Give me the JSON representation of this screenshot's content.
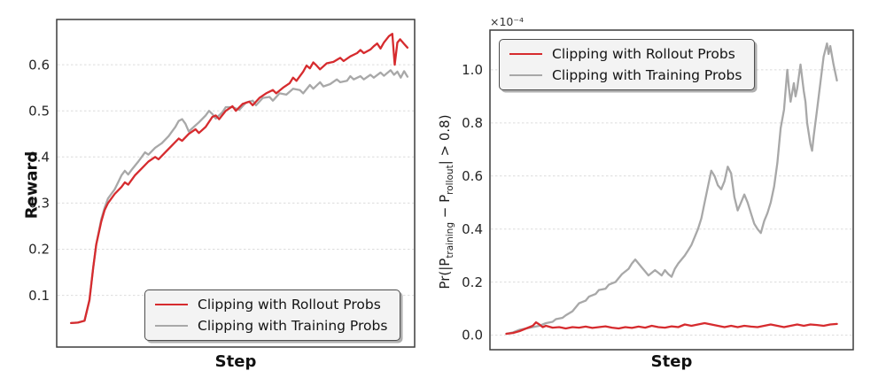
{
  "figure": {
    "background": "#ffffff",
    "colors": {
      "rollout": "#d62b2e",
      "training": "#a8a8a8",
      "grid": "#dcdcdc",
      "spine": "#3c3c3c",
      "tick_label": "#262626",
      "axis_label": "#111111",
      "legend_bg": "#f3f3f3",
      "legend_border": "#4d4d4d"
    }
  },
  "legend": {
    "items": [
      {
        "label": "Clipping with Rollout Probs",
        "color_key": "rollout"
      },
      {
        "label": "Clipping with Training Probs",
        "color_key": "training"
      }
    ]
  },
  "chart_data": [
    {
      "type": "line",
      "panel": "left",
      "title": "",
      "xlabel": "Step",
      "ylabel": "Reward",
      "x_axis_tick_labels": "none shown",
      "ylim": [
        -0.012,
        0.698
      ],
      "yticks": [
        0.1,
        0.2,
        0.3,
        0.4,
        0.5,
        0.6
      ],
      "ytick_labels": [
        "0.1",
        "0.2",
        "0.3",
        "0.4",
        "0.5",
        "0.6"
      ],
      "grid": "horizontal-dashed",
      "legend_position": "lower right",
      "series": [
        {
          "name": "Clipping with Training Probs",
          "color": "#a8a8a8",
          "x": [
            0,
            0.02,
            0.04,
            0.055,
            0.066,
            0.075,
            0.09,
            0.1,
            0.11,
            0.13,
            0.14,
            0.15,
            0.16,
            0.17,
            0.18,
            0.2,
            0.21,
            0.22,
            0.23,
            0.25,
            0.27,
            0.29,
            0.3,
            0.31,
            0.32,
            0.33,
            0.34,
            0.35,
            0.36,
            0.38,
            0.4,
            0.41,
            0.42,
            0.43,
            0.45,
            0.46,
            0.48,
            0.5,
            0.52,
            0.54,
            0.55,
            0.57,
            0.59,
            0.6,
            0.62,
            0.64,
            0.66,
            0.68,
            0.69,
            0.71,
            0.72,
            0.74,
            0.75,
            0.77,
            0.79,
            0.8,
            0.82,
            0.83,
            0.84,
            0.86,
            0.87,
            0.89,
            0.9,
            0.92,
            0.93,
            0.95,
            0.96,
            0.97,
            0.98,
            0.99,
            1.0
          ],
          "y": [
            0.04,
            0.041,
            0.045,
            0.09,
            0.16,
            0.21,
            0.265,
            0.29,
            0.31,
            0.33,
            0.345,
            0.36,
            0.37,
            0.362,
            0.372,
            0.39,
            0.4,
            0.41,
            0.405,
            0.42,
            0.43,
            0.445,
            0.455,
            0.465,
            0.478,
            0.482,
            0.472,
            0.455,
            0.462,
            0.475,
            0.49,
            0.5,
            0.493,
            0.483,
            0.497,
            0.508,
            0.508,
            0.502,
            0.518,
            0.522,
            0.512,
            0.528,
            0.53,
            0.522,
            0.538,
            0.535,
            0.548,
            0.545,
            0.538,
            0.556,
            0.548,
            0.562,
            0.553,
            0.558,
            0.568,
            0.562,
            0.565,
            0.575,
            0.568,
            0.575,
            0.568,
            0.578,
            0.572,
            0.583,
            0.576,
            0.588,
            0.578,
            0.585,
            0.572,
            0.586,
            0.574
          ]
        },
        {
          "name": "Clipping with Rollout Probs",
          "color": "#d62b2e",
          "x": [
            0,
            0.02,
            0.04,
            0.055,
            0.066,
            0.075,
            0.09,
            0.1,
            0.11,
            0.13,
            0.15,
            0.16,
            0.17,
            0.19,
            0.21,
            0.23,
            0.25,
            0.26,
            0.28,
            0.3,
            0.32,
            0.33,
            0.35,
            0.37,
            0.38,
            0.4,
            0.42,
            0.43,
            0.44,
            0.46,
            0.48,
            0.49,
            0.51,
            0.53,
            0.54,
            0.56,
            0.58,
            0.6,
            0.61,
            0.63,
            0.65,
            0.66,
            0.67,
            0.69,
            0.7,
            0.71,
            0.72,
            0.73,
            0.74,
            0.76,
            0.78,
            0.8,
            0.81,
            0.83,
            0.85,
            0.86,
            0.87,
            0.89,
            0.9,
            0.91,
            0.92,
            0.93,
            0.945,
            0.955,
            0.962,
            0.97,
            0.978,
            0.99,
            1.0
          ],
          "y": [
            0.04,
            0.041,
            0.045,
            0.09,
            0.16,
            0.21,
            0.26,
            0.285,
            0.3,
            0.32,
            0.335,
            0.345,
            0.34,
            0.36,
            0.375,
            0.39,
            0.4,
            0.395,
            0.41,
            0.425,
            0.44,
            0.435,
            0.45,
            0.46,
            0.452,
            0.465,
            0.487,
            0.49,
            0.482,
            0.5,
            0.51,
            0.5,
            0.515,
            0.52,
            0.512,
            0.528,
            0.538,
            0.545,
            0.538,
            0.55,
            0.56,
            0.572,
            0.565,
            0.585,
            0.598,
            0.592,
            0.605,
            0.598,
            0.59,
            0.603,
            0.606,
            0.615,
            0.608,
            0.618,
            0.625,
            0.632,
            0.625,
            0.633,
            0.64,
            0.646,
            0.635,
            0.648,
            0.662,
            0.667,
            0.6,
            0.648,
            0.655,
            0.645,
            0.637
          ]
        }
      ]
    },
    {
      "type": "line",
      "panel": "right",
      "title": "",
      "xlabel": "Step",
      "ylabel_parts": {
        "p1": "Pr(|P",
        "sub1": "training",
        "p2": " − P",
        "sub2": "rollout",
        "p3": "| > 0.8)"
      },
      "offset_text": "×10⁻⁴",
      "y_unit": "1e-4",
      "x_axis_tick_labels": "none shown",
      "ylim": [
        -0.055,
        1.15
      ],
      "yticks": [
        0.0,
        0.2,
        0.4,
        0.6,
        0.8,
        1.0
      ],
      "ytick_labels": [
        "0.0",
        "0.2",
        "0.4",
        "0.6",
        "0.8",
        "1.0"
      ],
      "grid": "horizontal-dashed",
      "legend_position": "upper left",
      "series": [
        {
          "name": "Clipping with Training Probs",
          "color": "#a8a8a8",
          "x": [
            0,
            0.02,
            0.04,
            0.06,
            0.08,
            0.1,
            0.12,
            0.14,
            0.15,
            0.17,
            0.18,
            0.2,
            0.22,
            0.24,
            0.25,
            0.27,
            0.28,
            0.3,
            0.31,
            0.33,
            0.34,
            0.35,
            0.37,
            0.38,
            0.39,
            0.4,
            0.41,
            0.42,
            0.43,
            0.44,
            0.45,
            0.46,
            0.47,
            0.48,
            0.49,
            0.5,
            0.51,
            0.52,
            0.53,
            0.54,
            0.55,
            0.56,
            0.57,
            0.58,
            0.59,
            0.6,
            0.61,
            0.62,
            0.63,
            0.64,
            0.65,
            0.66,
            0.67,
            0.68,
            0.69,
            0.7,
            0.71,
            0.72,
            0.73,
            0.74,
            0.75,
            0.76,
            0.77,
            0.78,
            0.79,
            0.8,
            0.81,
            0.82,
            0.83,
            0.84,
            0.85,
            0.855,
            0.86,
            0.87,
            0.875,
            0.88,
            0.89,
            0.9,
            0.905,
            0.91,
            0.92,
            0.925,
            0.93,
            0.94,
            0.95,
            0.96,
            0.97,
            0.975,
            0.98,
            0.99,
            1.0
          ],
          "y": [
            0.005,
            0.01,
            0.02,
            0.025,
            0.03,
            0.035,
            0.045,
            0.05,
            0.06,
            0.065,
            0.075,
            0.09,
            0.12,
            0.13,
            0.145,
            0.155,
            0.17,
            0.175,
            0.19,
            0.2,
            0.215,
            0.23,
            0.25,
            0.27,
            0.285,
            0.27,
            0.255,
            0.24,
            0.225,
            0.235,
            0.245,
            0.235,
            0.225,
            0.245,
            0.23,
            0.22,
            0.25,
            0.27,
            0.285,
            0.3,
            0.32,
            0.34,
            0.37,
            0.4,
            0.44,
            0.5,
            0.56,
            0.62,
            0.6,
            0.565,
            0.55,
            0.58,
            0.635,
            0.61,
            0.52,
            0.47,
            0.5,
            0.53,
            0.5,
            0.46,
            0.42,
            0.4,
            0.385,
            0.43,
            0.46,
            0.5,
            0.56,
            0.65,
            0.78,
            0.85,
            1.0,
            0.93,
            0.88,
            0.95,
            0.9,
            0.93,
            1.02,
            0.92,
            0.88,
            0.8,
            0.72,
            0.695,
            0.75,
            0.85,
            0.95,
            1.05,
            1.1,
            1.06,
            1.09,
            1.02,
            0.96
          ]
        },
        {
          "name": "Clipping with Rollout Probs",
          "color": "#d62b2e",
          "x": [
            0,
            0.02,
            0.04,
            0.05,
            0.06,
            0.07,
            0.08,
            0.09,
            0.1,
            0.11,
            0.12,
            0.14,
            0.16,
            0.18,
            0.2,
            0.22,
            0.24,
            0.26,
            0.28,
            0.3,
            0.32,
            0.34,
            0.36,
            0.38,
            0.4,
            0.42,
            0.44,
            0.46,
            0.48,
            0.5,
            0.52,
            0.54,
            0.56,
            0.58,
            0.6,
            0.62,
            0.64,
            0.66,
            0.68,
            0.7,
            0.72,
            0.74,
            0.76,
            0.78,
            0.8,
            0.82,
            0.84,
            0.86,
            0.88,
            0.9,
            0.92,
            0.94,
            0.96,
            0.98,
            1.0
          ],
          "y": [
            0.005,
            0.008,
            0.015,
            0.02,
            0.025,
            0.03,
            0.035,
            0.048,
            0.04,
            0.03,
            0.035,
            0.028,
            0.03,
            0.025,
            0.03,
            0.028,
            0.032,
            0.027,
            0.03,
            0.033,
            0.028,
            0.025,
            0.03,
            0.027,
            0.032,
            0.028,
            0.035,
            0.03,
            0.028,
            0.033,
            0.03,
            0.04,
            0.035,
            0.04,
            0.045,
            0.04,
            0.035,
            0.03,
            0.035,
            0.03,
            0.035,
            0.032,
            0.03,
            0.035,
            0.04,
            0.035,
            0.03,
            0.035,
            0.04,
            0.035,
            0.04,
            0.038,
            0.035,
            0.04,
            0.042
          ]
        }
      ]
    }
  ]
}
